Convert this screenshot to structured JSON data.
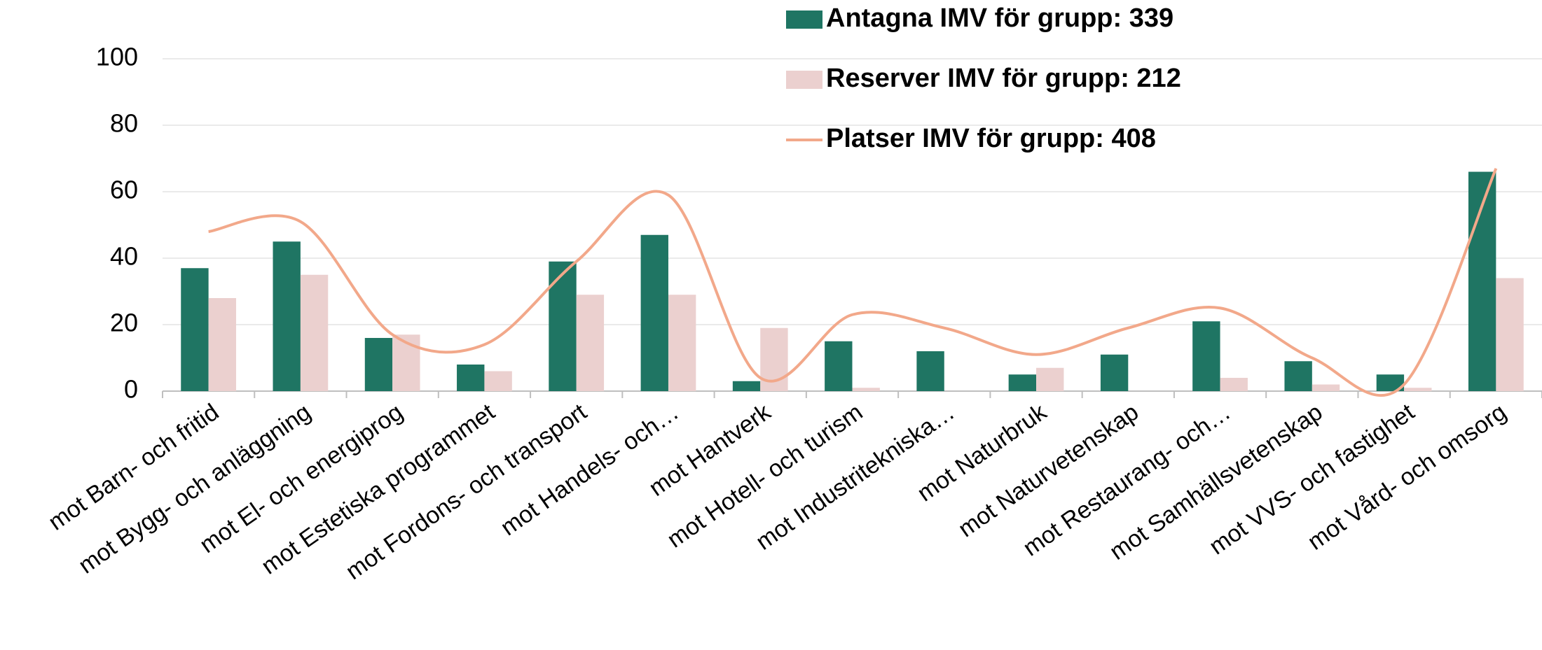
{
  "chart_data": {
    "type": "bar_line",
    "categories": [
      "mot Barn- och fritid",
      "mot Bygg- och anläggning",
      "mot El- och energiprog",
      "mot Estetiska programmet",
      "mot Fordons- och transport",
      "mot Handels- och…",
      "mot Hantverk",
      "mot Hotell- och turism",
      "mot Industritekniska…",
      "mot Naturbruk",
      "mot Naturvetenskap",
      "mot Restaurang- och…",
      "mot Samhällsvetenskap",
      "mot VVS- och fastighet",
      "mot Vård- och omsorg"
    ],
    "series": [
      {
        "name": "Antagna IMV för grupp: 339",
        "type": "bar",
        "color": "#1f7563",
        "values": [
          37,
          45,
          16,
          8,
          39,
          47,
          3,
          15,
          12,
          5,
          11,
          21,
          9,
          5,
          66
        ]
      },
      {
        "name": "Reserver IMV för grupp: 212",
        "type": "bar",
        "color": "#ebd0cf",
        "values": [
          28,
          35,
          17,
          6,
          29,
          29,
          19,
          1,
          0,
          7,
          0,
          4,
          2,
          1,
          34
        ]
      },
      {
        "name": "Platser IMV för grupp: 408",
        "type": "line",
        "smooth": true,
        "color": "#f2a88a",
        "values": [
          48,
          51,
          17,
          14,
          39,
          59,
          4,
          23,
          19,
          11,
          19,
          25,
          10,
          2,
          67
        ]
      }
    ],
    "ylim": [
      0,
      100
    ],
    "yticks": [
      0,
      20,
      40,
      60,
      80,
      100
    ],
    "grid": true
  }
}
